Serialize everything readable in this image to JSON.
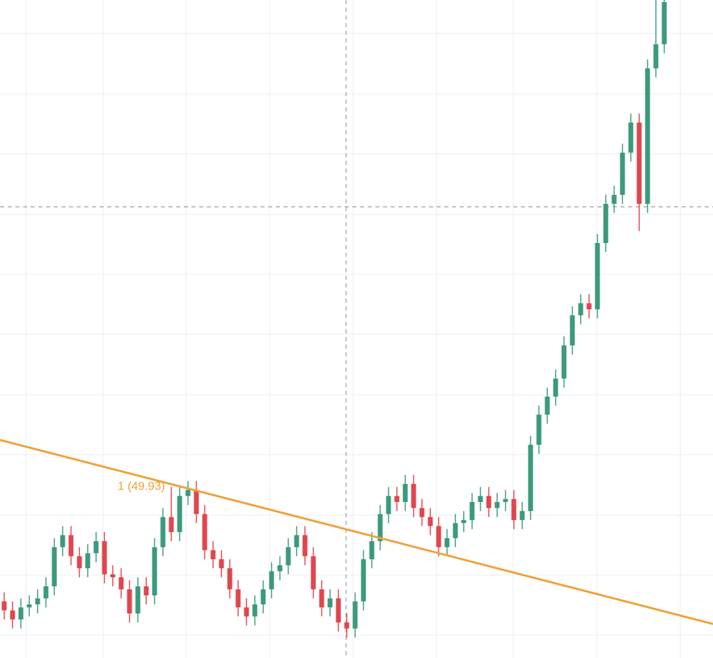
{
  "chart_data": {
    "type": "candlestick",
    "ylim": [
      44.22,
      66.07
    ],
    "up_color": "#3b9a7c",
    "down_color": "#e0464e",
    "open": [
      46.1,
      45.8,
      45.5,
      45.9,
      46.0,
      46.2,
      46.6,
      47.9,
      48.3,
      47.6,
      47.2,
      47.7,
      48.1,
      47.0,
      46.9,
      46.5,
      45.7,
      46.6,
      46.3,
      47.9,
      48.9,
      48.4,
      49.6,
      49.8,
      49.0,
      47.8,
      47.5,
      47.2,
      46.5,
      45.9,
      45.6,
      46.0,
      46.5,
      47.1,
      47.3,
      47.9,
      48.3,
      47.6,
      46.5,
      45.9,
      46.2,
      45.4,
      45.2,
      46.1,
      47.5,
      48.1,
      49.0,
      49.6,
      49.4,
      50.0,
      49.2,
      48.9,
      48.6,
      47.9,
      48.2,
      48.7,
      48.8,
      49.4,
      49.6,
      49.2,
      49.4,
      49.5,
      48.8,
      49.1,
      51.3,
      52.3,
      52.9,
      53.5,
      54.6,
      55.6,
      56.0,
      55.8,
      58.0,
      59.3,
      59.6,
      61.0,
      62.0,
      59.3,
      63.8,
      64.6
    ],
    "high": [
      46.4,
      46.1,
      46.2,
      46.3,
      46.5,
      46.9,
      48.2,
      48.6,
      48.6,
      47.9,
      48.0,
      48.4,
      48.4,
      47.3,
      47.2,
      46.8,
      46.9,
      46.9,
      48.2,
      49.2,
      49.9,
      49.9,
      50.1,
      50.1,
      49.3,
      48.1,
      47.8,
      47.5,
      46.8,
      46.2,
      46.3,
      46.8,
      47.4,
      47.6,
      48.2,
      48.6,
      48.6,
      47.9,
      46.8,
      46.5,
      46.5,
      45.7,
      46.4,
      47.8,
      48.4,
      49.3,
      49.9,
      49.9,
      50.3,
      50.3,
      49.5,
      49.2,
      48.9,
      48.5,
      49.0,
      49.1,
      49.7,
      49.9,
      49.9,
      49.7,
      49.8,
      49.8,
      49.4,
      51.6,
      52.6,
      53.2,
      53.8,
      54.9,
      55.9,
      56.3,
      56.3,
      58.3,
      59.6,
      59.9,
      61.3,
      62.3,
      62.3,
      64.1,
      66.2,
      66.3
    ],
    "low": [
      45.5,
      45.2,
      45.2,
      45.6,
      45.7,
      45.9,
      46.3,
      47.6,
      47.3,
      46.9,
      46.9,
      47.4,
      46.7,
      46.6,
      46.2,
      45.4,
      45.4,
      46.0,
      46.0,
      47.6,
      48.1,
      48.1,
      49.3,
      48.7,
      47.5,
      47.2,
      46.9,
      46.2,
      45.6,
      45.3,
      45.3,
      45.7,
      46.2,
      46.8,
      47.0,
      47.6,
      47.3,
      46.2,
      45.6,
      45.6,
      45.1,
      44.9,
      44.9,
      45.8,
      47.2,
      47.8,
      48.7,
      49.1,
      49.1,
      48.9,
      48.6,
      48.3,
      47.6,
      47.6,
      47.9,
      48.4,
      48.5,
      49.1,
      48.9,
      48.9,
      49.1,
      48.5,
      48.5,
      48.8,
      51.0,
      52.0,
      52.6,
      53.2,
      54.3,
      55.3,
      55.5,
      55.5,
      57.7,
      59.0,
      59.3,
      60.7,
      58.4,
      59.0,
      63.5,
      64.3
    ],
    "close": [
      45.8,
      45.5,
      45.9,
      46.0,
      46.2,
      46.6,
      47.9,
      48.3,
      47.6,
      47.2,
      47.7,
      48.1,
      47.0,
      46.9,
      46.5,
      45.7,
      46.6,
      46.3,
      47.9,
      48.9,
      48.4,
      49.6,
      49.8,
      49.0,
      47.8,
      47.5,
      47.2,
      46.5,
      45.9,
      45.6,
      46.0,
      46.5,
      47.1,
      47.3,
      47.9,
      48.3,
      47.6,
      46.5,
      45.9,
      46.2,
      45.4,
      45.2,
      46.1,
      47.5,
      48.1,
      49.0,
      49.6,
      49.4,
      50.0,
      49.2,
      48.9,
      48.6,
      47.9,
      48.2,
      48.7,
      48.8,
      49.4,
      49.6,
      49.2,
      49.4,
      49.5,
      48.8,
      49.1,
      51.3,
      52.3,
      52.9,
      53.5,
      54.6,
      55.6,
      56.0,
      55.8,
      58.0,
      59.3,
      59.6,
      61.0,
      62.0,
      59.3,
      63.8,
      64.6,
      66.0
    ],
    "trendline": {
      "label": "1 (49.93)",
      "color": "#f0a23a",
      "values": [
        51.46,
        45.35
      ]
    }
  }
}
